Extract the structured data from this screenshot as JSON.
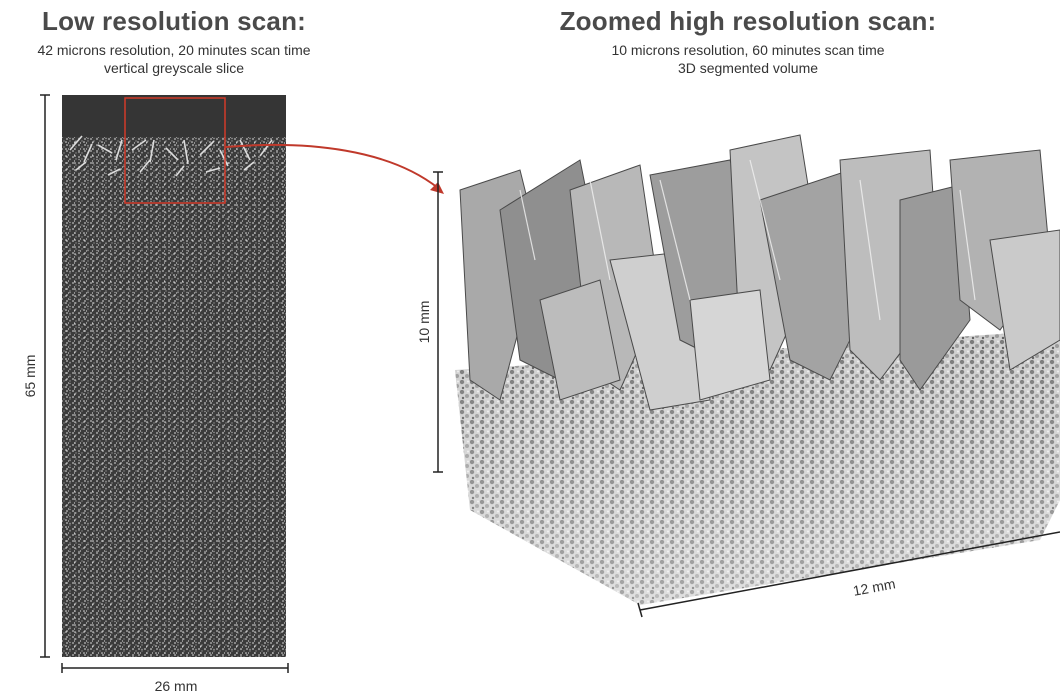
{
  "left_panel": {
    "title": "Low resolution scan:",
    "subtitle_1": "42 microns resolution, 20 minutes scan time",
    "subtitle_2": "vertical greyscale slice",
    "height_label": "65 mm",
    "width_label": "26 mm"
  },
  "right_panel": {
    "title": "Zoomed high resolution scan:",
    "subtitle_1": "10 microns resolution, 60 minutes scan time",
    "subtitle_2": "3D segmented volume",
    "height_label": "10 mm",
    "width_label": "12 mm"
  },
  "colors": {
    "highlight_box": "#d23b2a",
    "arrow": "#c0392b",
    "slice_bg": "#3a3a3a",
    "dim_line": "#222222"
  }
}
